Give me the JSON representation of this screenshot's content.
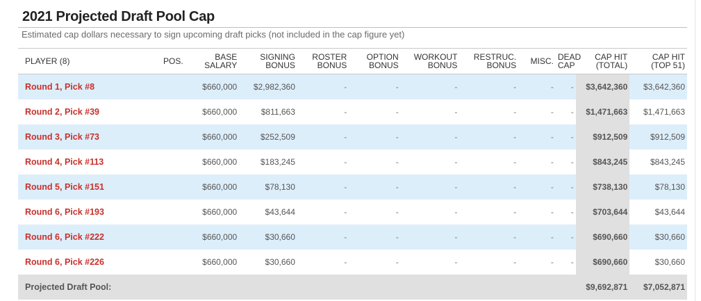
{
  "title": "2021 Projected Draft Pool Cap",
  "subtitle": "Estimated cap dollars necessary to sign upcoming draft picks (not included in the cap figure yet)",
  "headers": {
    "player": "PLAYER (8)",
    "pos": "POS.",
    "base_1": "BASE",
    "base_2": "SALARY",
    "signing_1": "SIGNING",
    "signing_2": "BONUS",
    "roster_1": "ROSTER",
    "roster_2": "BONUS",
    "option_1": "OPTION",
    "option_2": "BONUS",
    "workout_1": "WORKOUT",
    "workout_2": "BONUS",
    "restruc_1": "RESTRUC.",
    "restruc_2": "BONUS",
    "misc": "MISC.",
    "dead_1": "DEAD",
    "dead_2": "CAP",
    "total_1": "CAP HIT",
    "total_2": "(TOTAL)",
    "top51_1": "CAP HIT",
    "top51_2": "(TOP 51)"
  },
  "rows": [
    {
      "player": "Round 1, Pick #8",
      "pos": "",
      "base": "$660,000",
      "signing": "$2,982,360",
      "roster": "-",
      "option": "-",
      "workout": "-",
      "restruc": "-",
      "misc": "-",
      "dead": "-",
      "total": "$3,642,360",
      "top51": "$3,642,360"
    },
    {
      "player": "Round 2, Pick #39",
      "pos": "",
      "base": "$660,000",
      "signing": "$811,663",
      "roster": "-",
      "option": "-",
      "workout": "-",
      "restruc": "-",
      "misc": "-",
      "dead": "-",
      "total": "$1,471,663",
      "top51": "$1,471,663"
    },
    {
      "player": "Round 3, Pick #73",
      "pos": "",
      "base": "$660,000",
      "signing": "$252,509",
      "roster": "-",
      "option": "-",
      "workout": "-",
      "restruc": "-",
      "misc": "-",
      "dead": "-",
      "total": "$912,509",
      "top51": "$912,509"
    },
    {
      "player": "Round 4, Pick #113",
      "pos": "",
      "base": "$660,000",
      "signing": "$183,245",
      "roster": "-",
      "option": "-",
      "workout": "-",
      "restruc": "-",
      "misc": "-",
      "dead": "-",
      "total": "$843,245",
      "top51": "$843,245"
    },
    {
      "player": "Round 5, Pick #151",
      "pos": "",
      "base": "$660,000",
      "signing": "$78,130",
      "roster": "-",
      "option": "-",
      "workout": "-",
      "restruc": "-",
      "misc": "-",
      "dead": "-",
      "total": "$738,130",
      "top51": "$78,130"
    },
    {
      "player": "Round 6, Pick #193",
      "pos": "",
      "base": "$660,000",
      "signing": "$43,644",
      "roster": "-",
      "option": "-",
      "workout": "-",
      "restruc": "-",
      "misc": "-",
      "dead": "-",
      "total": "$703,644",
      "top51": "$43,644"
    },
    {
      "player": "Round 6, Pick #222",
      "pos": "",
      "base": "$660,000",
      "signing": "$30,660",
      "roster": "-",
      "option": "-",
      "workout": "-",
      "restruc": "-",
      "misc": "-",
      "dead": "-",
      "total": "$690,660",
      "top51": "$30,660"
    },
    {
      "player": "Round 6, Pick #226",
      "pos": "",
      "base": "$660,000",
      "signing": "$30,660",
      "roster": "-",
      "option": "-",
      "workout": "-",
      "restruc": "-",
      "misc": "-",
      "dead": "-",
      "total": "$690,660",
      "top51": "$30,660"
    }
  ],
  "footer": {
    "label": "Projected Draft Pool:",
    "total": "$9,692,871",
    "top51": "$7,052,871"
  },
  "colors": {
    "accent_red": "#c8312b",
    "stripe_blue": "#ddeefb",
    "total_gray": "#e0e0e0"
  }
}
